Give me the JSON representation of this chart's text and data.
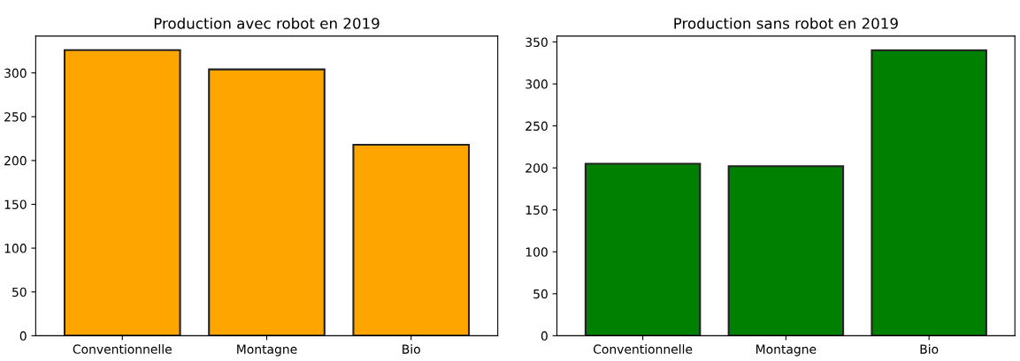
{
  "chart_data": [
    {
      "type": "bar",
      "title": "Production avec robot en 2019",
      "categories": [
        "Conventionnelle",
        "Montagne",
        "Bio"
      ],
      "values": [
        326,
        304,
        218
      ],
      "color": "#ffa500",
      "ylim": [
        0,
        342
      ],
      "yticks": [
        0,
        50,
        100,
        150,
        200,
        250,
        300
      ],
      "grid": false
    },
    {
      "type": "bar",
      "title": "Production sans robot en 2019",
      "categories": [
        "Conventionnelle",
        "Montagne",
        "Bio"
      ],
      "values": [
        205,
        202,
        340
      ],
      "color": "#008000",
      "ylim": [
        0,
        357
      ],
      "yticks": [
        0,
        50,
        100,
        150,
        200,
        250,
        300,
        350
      ],
      "grid": false
    }
  ]
}
